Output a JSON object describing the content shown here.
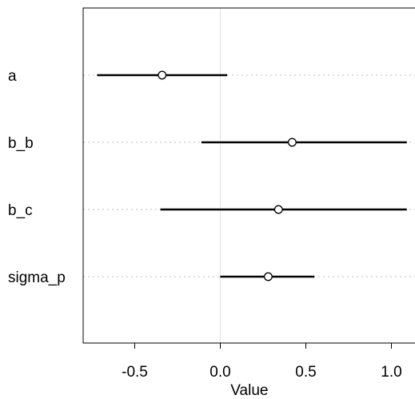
{
  "chart_data": {
    "type": "dot-interval",
    "xlabel": "Value",
    "xlim": [
      -0.8,
      1.15
    ],
    "x_ticks": [
      {
        "value": -0.5,
        "label": "-0.5"
      },
      {
        "value": 0.0,
        "label": "0.0"
      },
      {
        "value": 0.5,
        "label": "0.5"
      },
      {
        "value": 1.0,
        "label": "1.0"
      }
    ],
    "reference_line": 0.0,
    "rows": [
      {
        "label": "a",
        "estimate": -0.34,
        "lower": -0.72,
        "upper": 0.04
      },
      {
        "label": "b_b",
        "estimate": 0.42,
        "lower": -0.11,
        "upper": 1.09
      },
      {
        "label": "b_c",
        "estimate": 0.34,
        "lower": -0.35,
        "upper": 1.09
      },
      {
        "label": "sigma_p",
        "estimate": 0.28,
        "lower": 0.0,
        "upper": 0.55
      }
    ],
    "grid": "dotted-row-guides",
    "colors": {
      "interval": "#000000",
      "point_fill": "#ffffff",
      "guide": "#bfbfbf",
      "reference": "#e0e0e0"
    }
  }
}
